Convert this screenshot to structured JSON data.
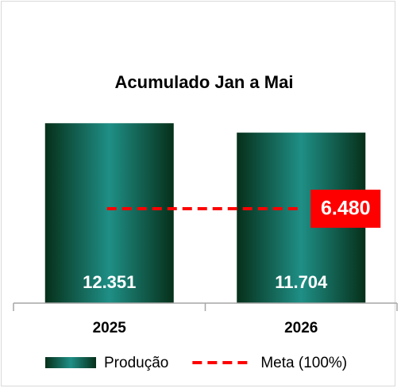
{
  "chart_data": {
    "type": "bar",
    "title": "Acumulado Jan a Mai",
    "categories": [
      "2025",
      "2026"
    ],
    "ylim": [
      0,
      14000
    ],
    "series": [
      {
        "name": "Produção",
        "type": "bar",
        "color": "#1f8f86",
        "values": [
          12351,
          11704
        ],
        "value_labels": [
          "12.351",
          "11.704"
        ]
      },
      {
        "name": "Meta (100%)",
        "type": "line",
        "color": "#ff0000",
        "values": [
          6480,
          6480
        ],
        "value_labels": [
          null,
          "6.480"
        ]
      }
    ]
  }
}
